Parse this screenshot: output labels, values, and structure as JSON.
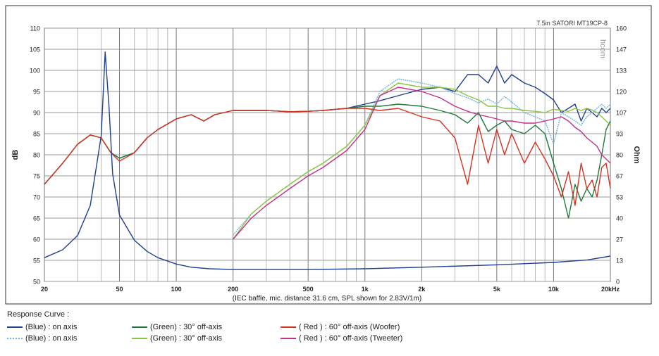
{
  "chart_data": {
    "type": "line",
    "title": "7.5in SATORI MT19CP-8",
    "watermark": "hcom",
    "xlabel": "(IEC baffle, mic. distance 31.6 cm, SPL shown for 2.83V/1m)",
    "ylabel": "dB",
    "y2label": "Ohm",
    "x_scale": "log",
    "xlim": [
      20,
      20000
    ],
    "ylim": [
      50,
      110
    ],
    "y2lim": [
      0,
      160
    ],
    "x_ticks": [
      {
        "v": 20,
        "label": "20"
      },
      {
        "v": 50,
        "label": "50"
      },
      {
        "v": 100,
        "label": "100"
      },
      {
        "v": 200,
        "label": "200"
      },
      {
        "v": 500,
        "label": "500"
      },
      {
        "v": 1000,
        "label": "1k"
      },
      {
        "v": 2000,
        "label": "2k"
      },
      {
        "v": 5000,
        "label": "5k"
      },
      {
        "v": 10000,
        "label": "10k"
      },
      {
        "v": 20000,
        "label": "20kHz"
      }
    ],
    "y_ticks": [
      "50",
      "55",
      "60",
      "65",
      "70",
      "75",
      "80",
      "85",
      "90",
      "95",
      "100",
      "105",
      "110"
    ],
    "y2_ticks": [
      "0",
      "13",
      "27",
      "40",
      "53",
      "67",
      "80",
      "93",
      "107",
      "120",
      "133",
      "147",
      "160"
    ],
    "grid": true,
    "legend_title": "Response Curve :",
    "series": [
      {
        "name": "(Blue)  : on axis",
        "color": "#1f3f8f",
        "axis": "spl",
        "x": [
          20,
          25,
          30,
          35,
          40,
          45,
          50,
          60,
          70,
          80,
          100,
          120,
          140,
          160,
          200,
          250,
          300,
          400,
          500,
          600,
          800,
          1000,
          1200,
          1500,
          2000,
          2500,
          3000,
          3500,
          4000,
          4500,
          5000,
          5500,
          6000,
          7000,
          8000,
          9000,
          10000,
          11000,
          12000,
          13000,
          14000,
          15000,
          16000,
          17000,
          18000,
          19000,
          20000
        ],
        "y": [
          73,
          78,
          82.5,
          84.7,
          84,
          80.5,
          79.2,
          80.5,
          84,
          86,
          88.5,
          89.5,
          88,
          89.5,
          90.5,
          90.5,
          90.5,
          90.2,
          90.3,
          90.5,
          91,
          92,
          92.8,
          94,
          95.5,
          96,
          95,
          99,
          99,
          97,
          101,
          97,
          99,
          97,
          96,
          94.5,
          93,
          90,
          91,
          92,
          88,
          91,
          90,
          89,
          91,
          90,
          91
        ]
      },
      {
        "name": "(Blue)  : on axis",
        "color": "#6fb3d8",
        "dotted": true,
        "axis": "spl",
        "x": [
          200,
          250,
          300,
          400,
          500,
          600,
          800,
          1000,
          1200,
          1500,
          2000,
          2500,
          3000,
          3500,
          4000,
          4500,
          5000,
          5500,
          6000,
          7000,
          8000,
          9000,
          10000,
          11000,
          12000,
          13000,
          14000,
          15000,
          16000,
          17000,
          18000,
          19000,
          20000
        ],
        "y": [
          61,
          66,
          69,
          73,
          76,
          78,
          82,
          87,
          95,
          98,
          97,
          96,
          94.5,
          93.5,
          92.3,
          93.2,
          92,
          93.8,
          92.5,
          90,
          89,
          88,
          82.5,
          90,
          89,
          88,
          87,
          89,
          90,
          91,
          92,
          91,
          92
        ]
      },
      {
        "name": "(Green) : 30° off-axis",
        "color": "#1d7a3c",
        "axis": "spl",
        "x": [
          20,
          25,
          30,
          35,
          40,
          45,
          50,
          60,
          70,
          80,
          100,
          120,
          140,
          160,
          200,
          250,
          300,
          400,
          500,
          600,
          800,
          1000,
          1200,
          1500,
          2000,
          2500,
          3000,
          3500,
          4000,
          4500,
          5000,
          5500,
          6000,
          7000,
          8000,
          9000,
          10000,
          11000,
          12000,
          13000,
          14000,
          15000,
          16000,
          17000,
          18000,
          19000,
          20000
        ],
        "y": [
          73,
          78,
          82.5,
          84.7,
          84,
          80.5,
          79.2,
          80.5,
          84,
          86,
          88.5,
          89.5,
          88,
          89.5,
          90.5,
          90.5,
          90.5,
          90.2,
          90.3,
          90.5,
          91,
          91.5,
          91.5,
          92,
          91.5,
          90.5,
          89.5,
          87.5,
          90,
          85.5,
          87,
          88,
          86,
          85,
          87,
          85,
          78,
          72,
          65,
          73,
          69,
          72,
          70,
          74,
          80,
          86,
          88
        ]
      },
      {
        "name": "(Green) : 30° off-axis",
        "color": "#8cc63f",
        "axis": "spl",
        "x": [
          200,
          250,
          300,
          400,
          500,
          600,
          800,
          1000,
          1200,
          1500,
          2000,
          2500,
          3000,
          3500,
          4000,
          4500,
          5000,
          5500,
          6000,
          7000,
          8000,
          9000,
          10000,
          11000,
          12000,
          13000,
          14000,
          15000,
          16000,
          17000,
          18000,
          19000,
          20000
        ],
        "y": [
          60,
          66,
          69,
          73,
          76,
          78,
          82,
          87,
          94,
          97,
          96,
          96,
          95.5,
          94,
          93,
          91.5,
          91.5,
          91,
          91,
          90.5,
          90.3,
          90,
          90.8,
          90.5,
          90.3,
          91,
          90.5,
          91,
          90.6,
          90,
          89,
          88,
          87
        ]
      },
      {
        "name": "( Red ) : 60° off-axis (Woofer)",
        "color": "#d7311f",
        "axis": "spl",
        "x": [
          20,
          25,
          30,
          35,
          40,
          45,
          50,
          60,
          70,
          80,
          100,
          120,
          140,
          160,
          200,
          250,
          300,
          400,
          500,
          600,
          800,
          1000,
          1200,
          1500,
          2000,
          2500,
          3000,
          3500,
          4000,
          4500,
          5000,
          5500,
          6000,
          7000,
          8000,
          9000,
          10000,
          11000,
          12000,
          13000,
          14000,
          15000,
          16000,
          17000,
          18000,
          19000,
          20000
        ],
        "y": [
          73,
          78,
          82.5,
          84.7,
          84,
          80.5,
          78.5,
          80.5,
          84,
          86,
          88.5,
          89.5,
          88,
          89.5,
          90.5,
          90.5,
          90.5,
          90.2,
          90.3,
          90.5,
          91,
          91,
          90.5,
          91,
          89,
          88,
          84,
          73,
          87,
          78,
          86,
          80,
          85,
          78,
          83,
          79,
          75,
          70,
          76,
          68,
          78,
          72,
          74,
          70,
          77,
          78,
          72
        ]
      },
      {
        "name": "( Red ) : 60° off-axis (Tweeter)",
        "color": "#c2308a",
        "axis": "spl",
        "x": [
          200,
          250,
          300,
          400,
          500,
          600,
          800,
          1000,
          1200,
          1500,
          2000,
          2500,
          3000,
          3500,
          4000,
          4500,
          5000,
          5500,
          6000,
          7000,
          8000,
          9000,
          10000,
          11000,
          12000,
          13000,
          14000,
          15000,
          16000,
          17000,
          18000,
          19000,
          20000
        ],
        "y": [
          60,
          65,
          68,
          72,
          75,
          77,
          81,
          86,
          94,
          96,
          95,
          93.5,
          91.5,
          90.3,
          89.5,
          89,
          88.5,
          88,
          88,
          87.5,
          87.5,
          88,
          88.5,
          89,
          88,
          86.5,
          85.5,
          84,
          83,
          82,
          80,
          79,
          78
        ]
      },
      {
        "name": "(Blue)  : on axis",
        "color": "#1f3f8f",
        "axis": "ohm",
        "impedance": true,
        "x": [
          20,
          25,
          30,
          35,
          40,
          42,
          44,
          46,
          50,
          60,
          70,
          80,
          100,
          120,
          150,
          200,
          300,
          500,
          1000,
          2000,
          5000,
          10000,
          15000,
          20000
        ],
        "y": [
          15,
          20,
          29,
          48,
          92,
          145,
          110,
          68,
          42,
          26,
          19,
          15,
          11,
          9,
          8,
          7.5,
          7.5,
          7.5,
          8,
          9,
          10.5,
          12,
          13.5,
          16
        ]
      }
    ],
    "legend": [
      {
        "label": "(Blue)  : on axis",
        "color": "#1f3f8f",
        "dotted": false
      },
      {
        "label": "(Green) : 30° off-axis",
        "color": "#1d7a3c",
        "dotted": false
      },
      {
        "label": "( Red ) : 60° off-axis (Woofer)",
        "color": "#d7311f",
        "dotted": false
      },
      {
        "label": "(Blue)  : on axis",
        "color": "#6fb3d8",
        "dotted": true
      },
      {
        "label": "(Green) : 30° off-axis",
        "color": "#8cc63f",
        "dotted": false
      },
      {
        "label": "( Red ) : 60° off-axis (Tweeter)",
        "color": "#c2308a",
        "dotted": false
      }
    ]
  }
}
